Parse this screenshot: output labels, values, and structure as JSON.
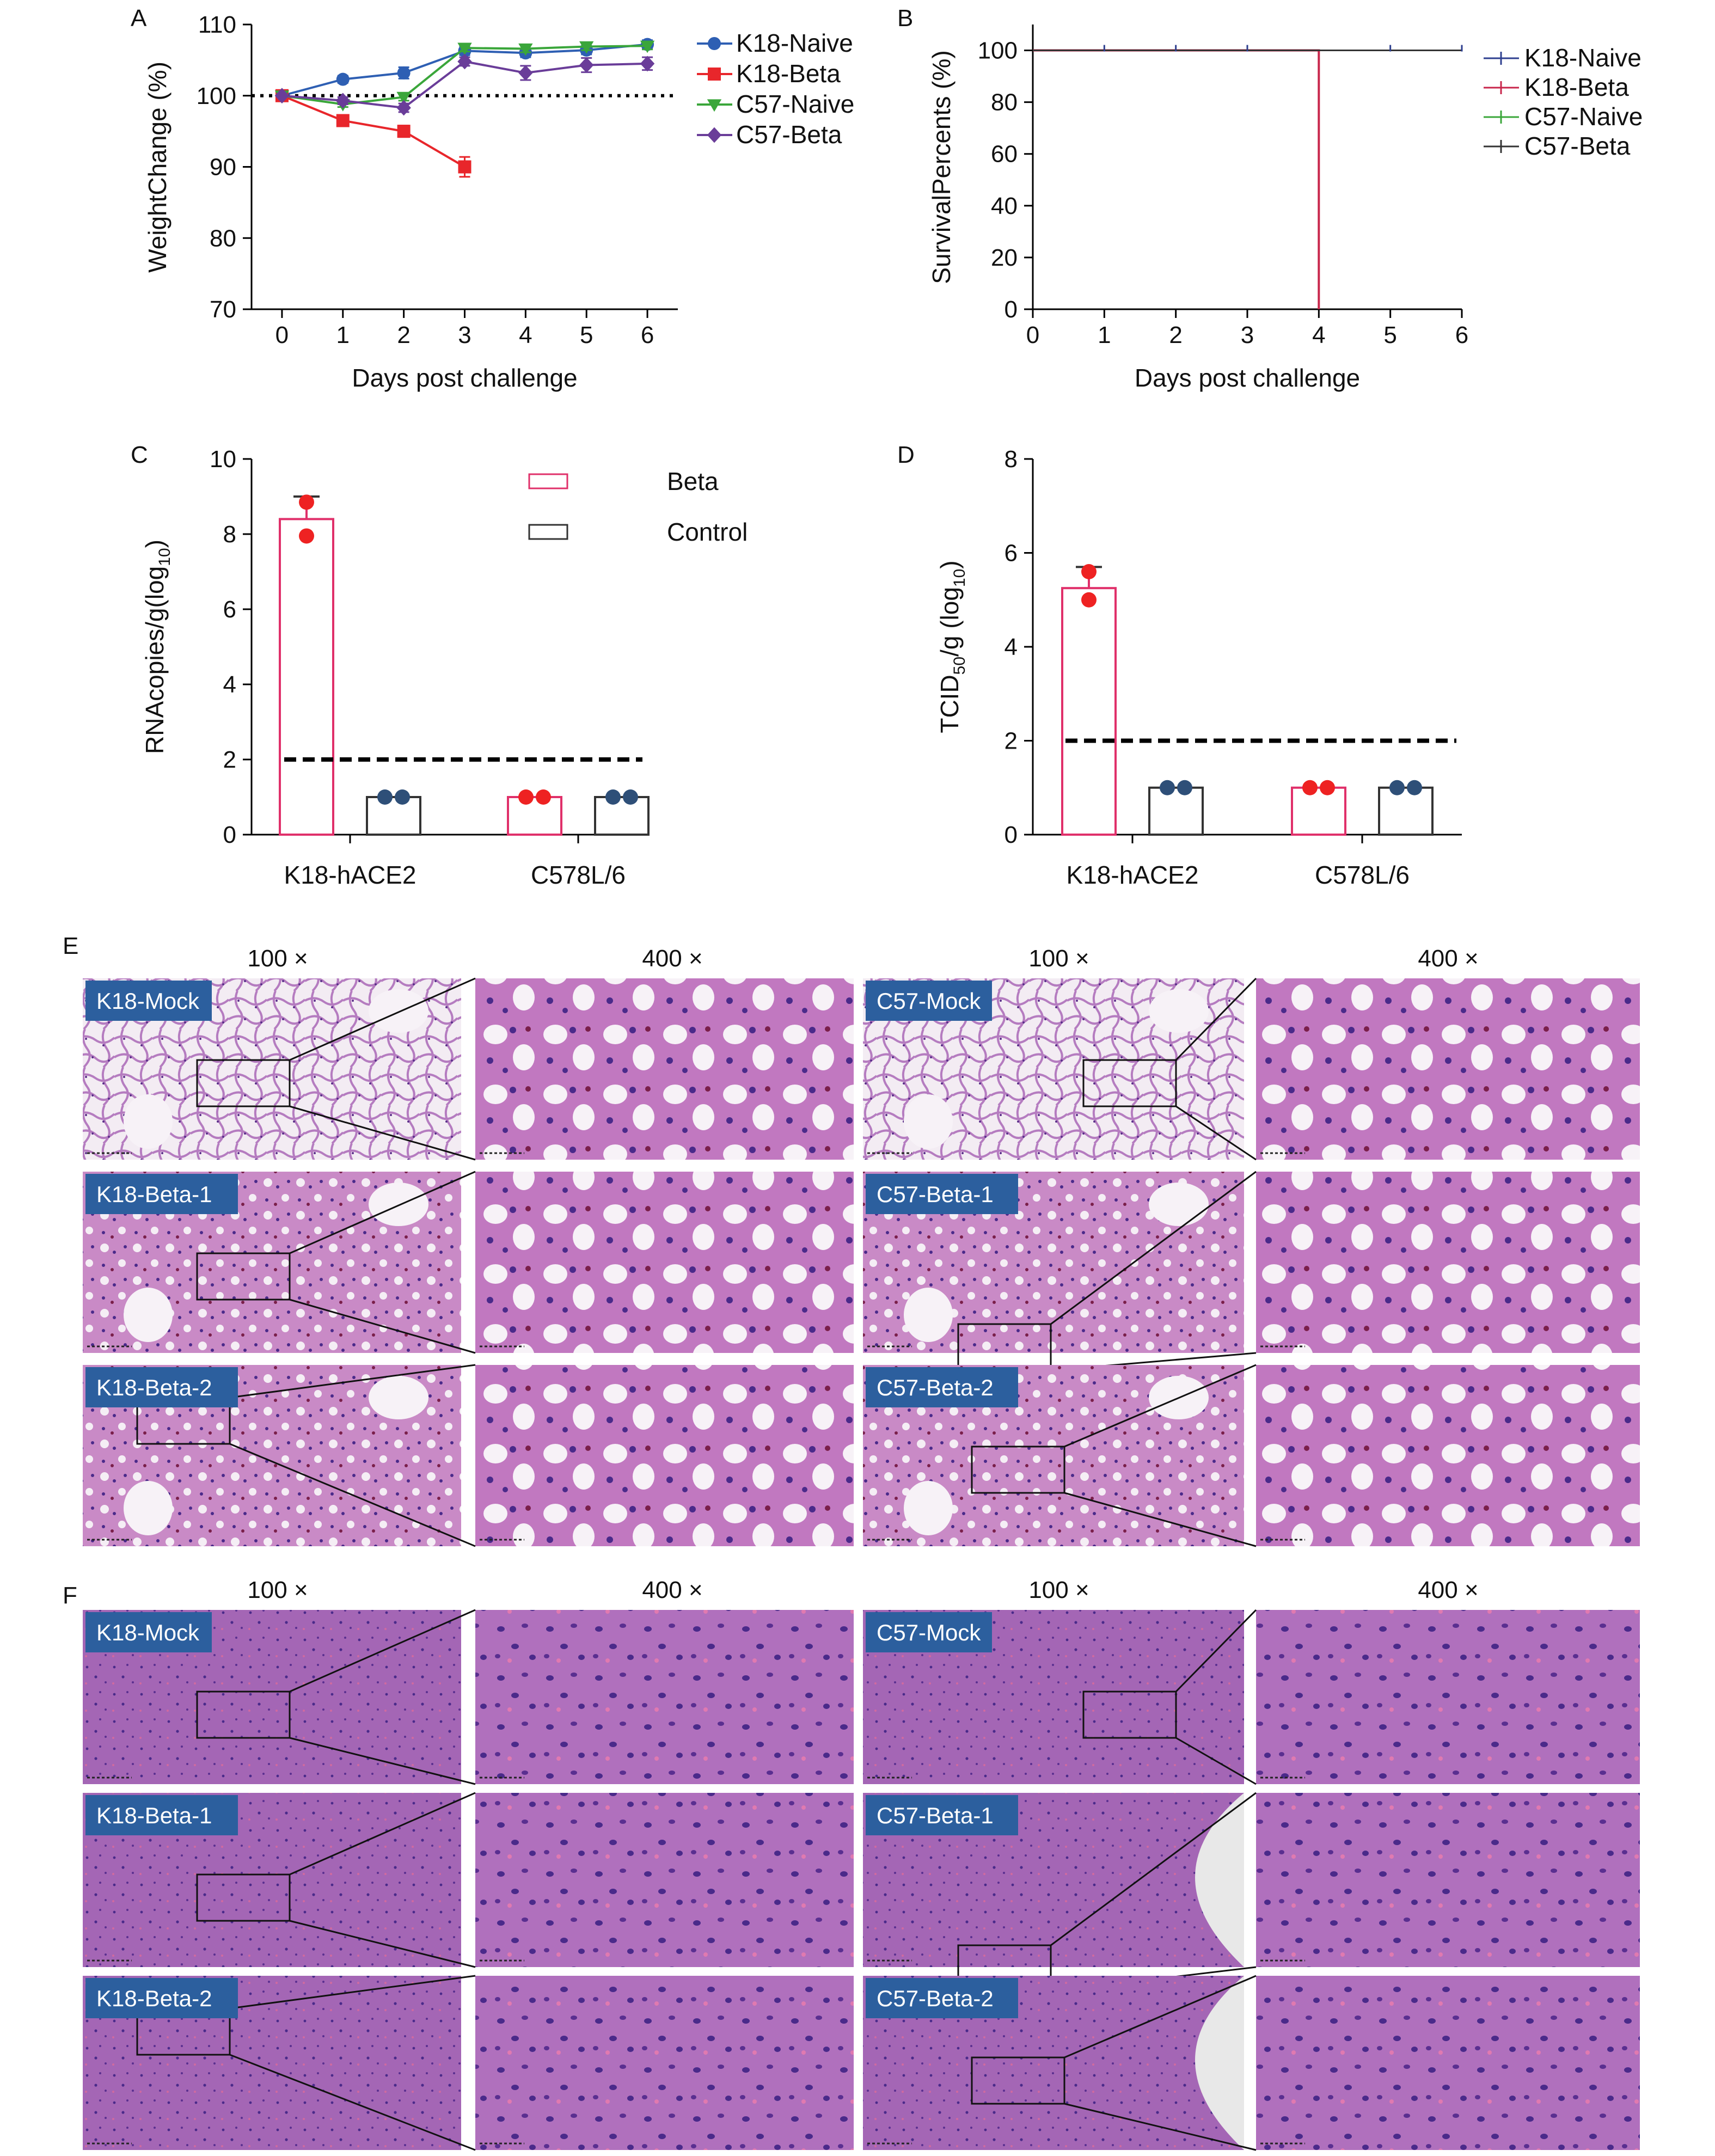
{
  "figure": {
    "panel_letters": [
      "A",
      "B",
      "C",
      "D",
      "E",
      "F"
    ]
  },
  "chart_data": [
    {
      "panel": "A",
      "type": "line",
      "title": "",
      "xlabel": "Days post challenge",
      "ylabel": "WeightChange (%)",
      "xlim": [
        -0.5,
        6.5
      ],
      "ylim": [
        70,
        110
      ],
      "xticks": [
        0,
        1,
        2,
        3,
        4,
        5,
        6
      ],
      "yticks": [
        70,
        80,
        90,
        100,
        110
      ],
      "reference_line": 100,
      "legend_position": "right",
      "series": [
        {
          "name": "K18-Naive",
          "color": "#2e5fb3",
          "marker": "circle",
          "x": [
            0,
            1,
            2,
            3,
            4,
            5,
            6
          ],
          "y": [
            100,
            102.3,
            103.2,
            106.3,
            106.0,
            106.4,
            107.2
          ],
          "err": [
            0,
            0.5,
            0.8,
            0.6,
            0.6,
            0.6,
            0.6
          ]
        },
        {
          "name": "K18-Beta",
          "color": "#e8262b",
          "marker": "square",
          "x": [
            0,
            1,
            2,
            3
          ],
          "y": [
            100,
            96.5,
            95.0,
            90.0
          ],
          "err": [
            0,
            0.4,
            0.8,
            1.4
          ]
        },
        {
          "name": "C57-Naive",
          "color": "#3aa63a",
          "marker": "triangle-down",
          "x": [
            0,
            1,
            2,
            3,
            4,
            5,
            6
          ],
          "y": [
            100,
            98.8,
            99.8,
            106.7,
            106.6,
            106.9,
            107.0
          ],
          "err": [
            0,
            0.4,
            0.5,
            0.5,
            0.5,
            0.5,
            0.5
          ]
        },
        {
          "name": "C57-Beta",
          "color": "#6a3d99",
          "marker": "diamond",
          "x": [
            0,
            1,
            2,
            3,
            4,
            5,
            6
          ],
          "y": [
            100,
            99.3,
            98.3,
            104.8,
            103.2,
            104.3,
            104.5
          ],
          "err": [
            0,
            0.5,
            0.6,
            0.6,
            1.0,
            1.0,
            0.9
          ]
        }
      ]
    },
    {
      "panel": "B",
      "type": "line",
      "title": "",
      "xlabel": "Days post challenge",
      "ylabel": "SurvivalPercents (%)",
      "xlim": [
        0,
        6
      ],
      "ylim": [
        0,
        100
      ],
      "xticks": [
        0,
        1,
        2,
        3,
        4,
        5,
        6
      ],
      "yticks": [
        0,
        20,
        40,
        60,
        80,
        100
      ],
      "legend_position": "right",
      "series": [
        {
          "name": "K18-Naive",
          "color": "#2e3f8f",
          "x": [
            0,
            6
          ],
          "y": [
            100,
            100
          ]
        },
        {
          "name": "K18-Beta",
          "color": "#c8264b",
          "x": [
            0,
            4,
            4
          ],
          "y": [
            100,
            100,
            0
          ]
        },
        {
          "name": "C57-Naive",
          "color": "#3aa63a",
          "x": [
            0,
            6
          ],
          "y": [
            100,
            100
          ]
        },
        {
          "name": "C57-Beta",
          "color": "#333333",
          "x": [
            0,
            6
          ],
          "y": [
            100,
            100
          ]
        }
      ]
    },
    {
      "panel": "C",
      "type": "bar",
      "title": "",
      "xlabel": "",
      "ylabel": "RNAcopies/g(log",
      "ylabel_sub": "10",
      "ylabel_end": ")",
      "ylim": [
        0,
        10
      ],
      "yticks": [
        0,
        2,
        4,
        6,
        8,
        10
      ],
      "reference_line": 2,
      "categories": [
        "K18-hACE2",
        "C578L/6"
      ],
      "legend_position": "top-center",
      "series": [
        {
          "name": "Beta",
          "edge": "#e0306a",
          "dot": "#ee2222",
          "values": [
            8.4,
            1.0
          ],
          "err": [
            0.6,
            0
          ],
          "points": [
            [
              8.85,
              7.95
            ],
            [
              1.0,
              1.0
            ]
          ]
        },
        {
          "name": "Control",
          "edge": "#333333",
          "dot": "#2e4f78",
          "values": [
            1.0,
            1.0
          ],
          "err": [
            0,
            0
          ],
          "points": [
            [
              1.0,
              1.0
            ],
            [
              1.0,
              1.0
            ]
          ]
        }
      ]
    },
    {
      "panel": "D",
      "type": "bar",
      "title": "",
      "xlabel": "",
      "ylabel": "TCID",
      "ylabel_sub": "50",
      "ylabel_mid": "/g (log",
      "ylabel_sub2": "10",
      "ylabel_end": ")",
      "ylim": [
        0,
        8
      ],
      "yticks": [
        0,
        2,
        4,
        6,
        8
      ],
      "reference_line": 2,
      "categories": [
        "K18-hACE2",
        "C578L/6"
      ],
      "series": [
        {
          "name": "Beta",
          "edge": "#e0306a",
          "dot": "#ee2222",
          "values": [
            5.25,
            1.0
          ],
          "err": [
            0.45,
            0
          ],
          "points": [
            [
              5.6,
              5.0
            ],
            [
              1.0,
              1.0
            ]
          ]
        },
        {
          "name": "Control",
          "edge": "#333333",
          "dot": "#2e4f78",
          "values": [
            1.0,
            1.0
          ],
          "err": [
            0,
            0
          ],
          "points": [
            [
              1.0,
              1.0
            ],
            [
              1.0,
              1.0
            ]
          ]
        }
      ]
    }
  ],
  "histology": {
    "panel_E": {
      "headers": [
        "100 ×",
        "400 ×",
        "100 ×",
        "400 ×"
      ],
      "rows": [
        {
          "left_label": "K18-Mock",
          "right_label": "C57-Mock"
        },
        {
          "left_label": "K18-Beta-1",
          "right_label": "C57-Beta-1"
        },
        {
          "left_label": "K18-Beta-2",
          "right_label": "C57-Beta-2"
        }
      ]
    },
    "panel_F": {
      "headers": [
        "100 ×",
        "400 ×",
        "100 ×",
        "400 ×"
      ],
      "rows": [
        {
          "left_label": "K18-Mock",
          "right_label": "C57-Mock"
        },
        {
          "left_label": "K18-Beta-1",
          "right_label": "C57-Beta-1"
        },
        {
          "left_label": "K18-Beta-2",
          "right_label": "C57-Beta-2"
        }
      ]
    },
    "colors": {
      "label_bg": "#2c5f9e",
      "lung_tissue": "#b07ab8",
      "lung_dense": "#8a3f8f",
      "lung_background": "#f4eef4",
      "brain_tissue": "#a466b5",
      "brain_dense": "#8f4fa6",
      "nuclei": "#4a2a8a"
    }
  }
}
